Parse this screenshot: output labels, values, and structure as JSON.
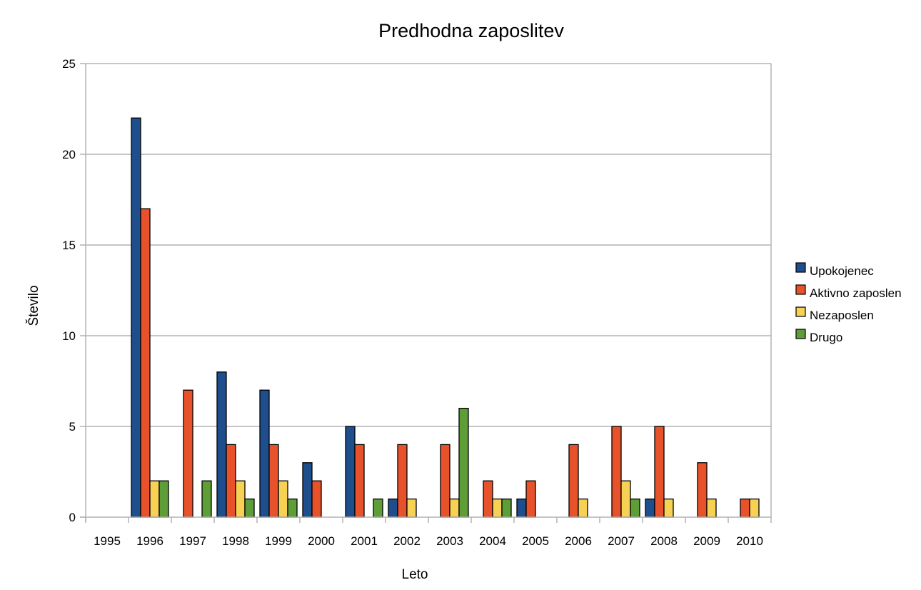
{
  "chart_data": {
    "type": "bar",
    "title": "Predhodna zaposlitev",
    "xlabel": "Leto",
    "ylabel": "Število",
    "ylim": [
      0,
      25
    ],
    "yticks": [
      0,
      5,
      10,
      15,
      20,
      25
    ],
    "grid": "horizontal",
    "legend_position": "right",
    "categories": [
      "1995",
      "1996",
      "1997",
      "1998",
      "1999",
      "2000",
      "2001",
      "2002",
      "2003",
      "2004",
      "2005",
      "2006",
      "2007",
      "2008",
      "2009",
      "2010"
    ],
    "series": [
      {
        "name": "Upokojenec",
        "color": "#1f4e8c",
        "values": [
          0,
          22,
          0,
          8,
          7,
          3,
          5,
          1,
          0,
          0,
          1,
          0,
          0,
          1,
          0,
          0
        ]
      },
      {
        "name": "Aktivno zaposlen",
        "color": "#e8522a",
        "values": [
          0,
          17,
          7,
          4,
          4,
          2,
          4,
          4,
          4,
          2,
          2,
          4,
          5,
          5,
          3,
          1
        ]
      },
      {
        "name": "Nezaposlen",
        "color": "#f7d154",
        "values": [
          0,
          2,
          0,
          2,
          2,
          0,
          0,
          1,
          1,
          1,
          0,
          1,
          2,
          1,
          1,
          1
        ]
      },
      {
        "name": "Drugo",
        "color": "#5e9e37",
        "values": [
          0,
          2,
          2,
          1,
          1,
          0,
          1,
          0,
          6,
          1,
          0,
          0,
          1,
          0,
          0,
          0
        ]
      }
    ]
  }
}
